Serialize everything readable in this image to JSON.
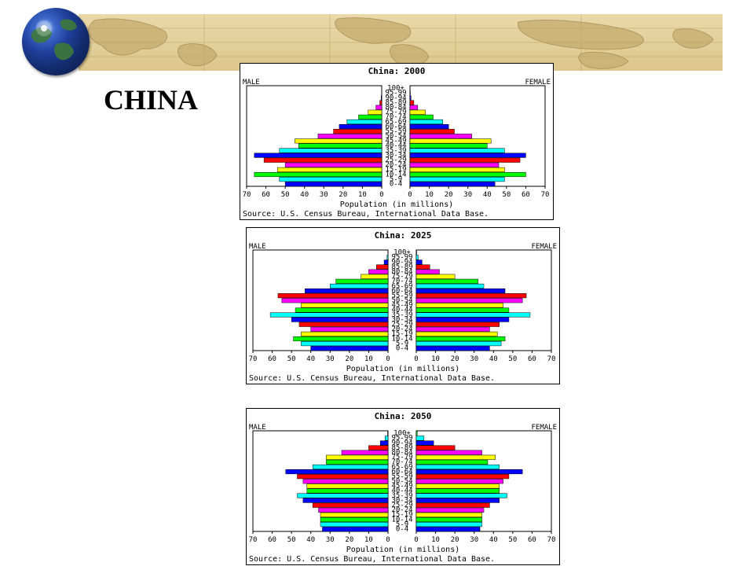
{
  "slide": {
    "title": "CHINA"
  },
  "chart_data": [
    {
      "type": "bar",
      "title": "China: 2000",
      "left_label": "MALE",
      "right_label": "FEMALE",
      "xlabel": "Population (in millions)",
      "source": "Source: U.S. Census Bureau, International Data Base.",
      "xlim": [
        0,
        70
      ],
      "ticks": [
        0,
        10,
        20,
        30,
        40,
        50,
        60,
        70
      ],
      "categories": [
        "0-4",
        "5-9",
        "10-14",
        "15-19",
        "20-24",
        "25-29",
        "30-34",
        "35-39",
        "40-44",
        "45-49",
        "50-54",
        "55-59",
        "60-64",
        "65-69",
        "70-74",
        "75-79",
        "80-84",
        "85-89",
        "90-94",
        "95-99",
        "100+"
      ],
      "series": [
        {
          "name": "MALE",
          "values": [
            50,
            53,
            66,
            54,
            50,
            61,
            66,
            53,
            43,
            45,
            33,
            25,
            22,
            18,
            12,
            7,
            3,
            1,
            0.3,
            0.1,
            0
          ]
        },
        {
          "name": "FEMALE",
          "values": [
            44,
            49,
            60,
            49,
            46,
            57,
            60,
            49,
            40,
            42,
            32,
            23,
            20,
            17,
            12,
            8,
            4,
            2,
            0.5,
            0.2,
            0
          ]
        }
      ]
    },
    {
      "type": "bar",
      "title": "China: 2025",
      "left_label": "MALE",
      "right_label": "FEMALE",
      "xlabel": "Population (in millions)",
      "source": "Source: U.S. Census Bureau, International Data Base.",
      "xlim": [
        0,
        70
      ],
      "ticks": [
        0,
        10,
        20,
        30,
        40,
        50,
        60,
        70
      ],
      "categories": [
        "0-4",
        "5-9",
        "10-14",
        "15-19",
        "20-24",
        "25-29",
        "30-34",
        "35-39",
        "40-44",
        "45-49",
        "50-54",
        "55-59",
        "60-64",
        "65-69",
        "70-74",
        "75-79",
        "80-84",
        "85-89",
        "90-94",
        "95-99",
        "100+"
      ],
      "series": [
        {
          "name": "MALE",
          "values": [
            40,
            45,
            49,
            45,
            40,
            46,
            50,
            61,
            48,
            45,
            55,
            57,
            43,
            30,
            27,
            14,
            10,
            6,
            2,
            0.5,
            0.1
          ]
        },
        {
          "name": "FEMALE",
          "values": [
            38,
            44,
            46,
            42,
            38,
            43,
            48,
            59,
            48,
            45,
            55,
            57,
            46,
            35,
            32,
            20,
            12,
            7,
            3,
            1,
            0.2
          ]
        }
      ]
    },
    {
      "type": "bar",
      "title": "China: 2050",
      "left_label": "MALE",
      "right_label": "FEMALE",
      "xlabel": "Population (in millions)",
      "source": "Source: U.S. Census Bureau, International Data Base.",
      "xlim": [
        0,
        70
      ],
      "ticks": [
        0,
        10,
        20,
        30,
        40,
        50,
        60,
        70
      ],
      "categories": [
        "0-4",
        "5-9",
        "10-14",
        "15-19",
        "20-24",
        "25-29",
        "30-34",
        "35-39",
        "40-44",
        "45-49",
        "50-54",
        "55-59",
        "60-64",
        "65-69",
        "70-74",
        "75-79",
        "80-84",
        "85-89",
        "90-94",
        "95-99",
        "100+"
      ],
      "series": [
        {
          "name": "MALE",
          "values": [
            34,
            35,
            35,
            35,
            36,
            39,
            44,
            47,
            42,
            42,
            44,
            47,
            53,
            39,
            32,
            32,
            24,
            10,
            4,
            1.5,
            0.2
          ]
        },
        {
          "name": "FEMALE",
          "values": [
            33,
            34,
            34,
            34,
            35,
            38,
            43,
            47,
            43,
            43,
            45,
            48,
            55,
            43,
            37,
            41,
            34,
            20,
            9,
            4,
            0.5
          ]
        }
      ]
    }
  ],
  "bar_colors": [
    "#0000ff",
    "#00ffff",
    "#00ff00",
    "#ffff00",
    "#ff00ff",
    "#ff0000"
  ]
}
